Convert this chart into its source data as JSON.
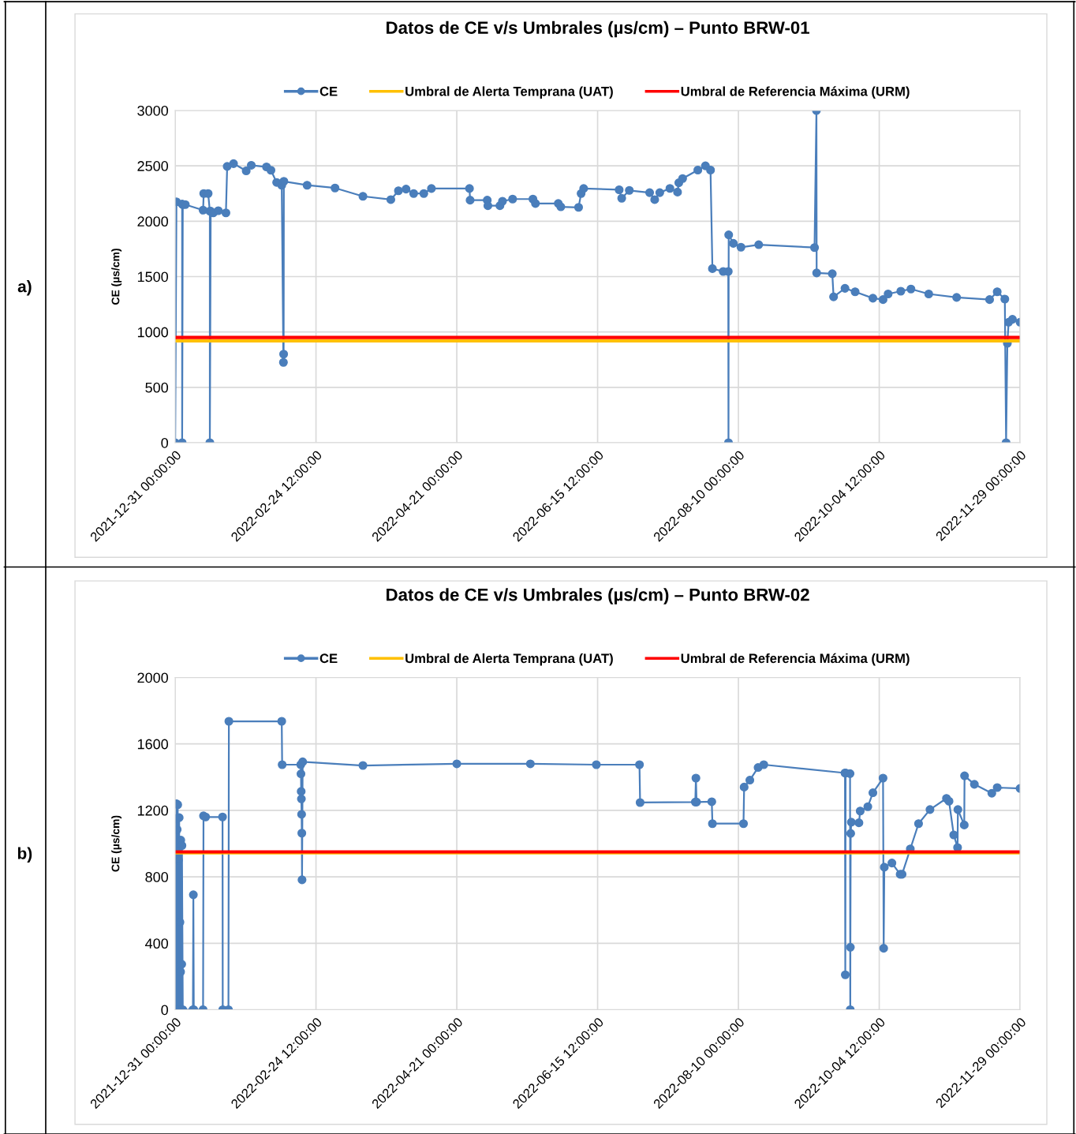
{
  "chart_data": [
    {
      "type": "line",
      "title": "Datos de CE v/s Umbrales (µs/cm) – Punto BRW-01",
      "ylabel": "CE (µs/cm)",
      "annotations": [
        "a)"
      ],
      "grid": true,
      "legend": "top",
      "xlim": [
        "2021-12-31T00:00",
        "2022-11-29T00:00"
      ],
      "xticks": [
        {
          "value": "2021-12-31T00:00",
          "label": "2021-12-31 00:00:00"
        },
        {
          "value": "2022-02-24T12:00",
          "label": "2022-02-24 12:00:00"
        },
        {
          "value": "2022-04-21T00:00",
          "label": "2022-04-21 00:00:00"
        },
        {
          "value": "2022-06-15T12:00",
          "label": "2022-06-15 12:00:00"
        },
        {
          "value": "2022-08-10T00:00",
          "label": "2022-08-10 00:00:00"
        },
        {
          "value": "2022-10-04T12:00",
          "label": "2022-10-04 12:00:00"
        },
        {
          "value": "2022-11-29T00:00",
          "label": "2022-11-29 00:00:00"
        }
      ],
      "ylim": [
        0,
        3000
      ],
      "yticks": [
        0,
        500,
        1000,
        1500,
        2000,
        2500,
        3000
      ],
      "series": [
        {
          "name": "CE",
          "color": "#4a7ebb",
          "marker": "circle",
          "x": [
            "2021-12-31T00:00",
            "2021-12-31T12:00",
            "2022-01-02T18:00",
            "2022-01-02T18:00",
            "2022-01-03T00:00",
            "2022-01-04",
            "2022-01-11",
            "2022-01-11T06:00",
            "2022-01-13",
            "2022-01-13T16:00",
            "2022-01-13T16:00",
            "2022-01-14",
            "2022-01-15",
            "2022-01-17",
            "2022-01-20",
            "2022-01-20T12:00",
            "2022-01-23",
            "2022-01-28",
            "2022-01-30",
            "2022-02-05",
            "2022-02-06T18:00",
            "2022-02-09",
            "2022-02-11",
            "2022-02-11T16:00",
            "2022-02-11T18:00",
            "2022-02-11T20:00",
            "2022-02-21",
            "2022-03-04",
            "2022-03-15",
            "2022-03-26",
            "2022-03-29",
            "2022-04-01",
            "2022-04-04",
            "2022-04-08",
            "2022-04-11",
            "2022-04-26",
            "2022-04-26T06:00",
            "2022-05-03",
            "2022-05-03T06:00",
            "2022-05-08",
            "2022-05-09",
            "2022-05-13",
            "2022-05-21",
            "2022-05-22",
            "2022-05-31",
            "2022-06-01",
            "2022-06-08",
            "2022-06-09",
            "2022-06-10",
            "2022-06-24",
            "2022-06-25",
            "2022-06-28",
            "2022-07-06",
            "2022-07-08",
            "2022-07-10",
            "2022-07-14",
            "2022-07-17",
            "2022-07-17T12:00",
            "2022-07-19",
            "2022-07-25",
            "2022-07-28",
            "2022-07-30",
            "2022-07-30T18:00",
            "2022-08-04",
            "2022-08-06",
            "2022-08-06T02:00",
            "2022-08-06T04:00",
            "2022-08-08",
            "2022-08-11",
            "2022-08-18",
            "2022-09-09",
            "2022-09-09T18:00",
            "2022-09-09T20:00",
            "2022-09-16",
            "2022-09-16T12:00",
            "2022-09-21",
            "2022-09-25",
            "2022-10-02",
            "2022-10-06",
            "2022-10-08",
            "2022-10-13",
            "2022-10-17",
            "2022-10-24",
            "2022-11-04",
            "2022-11-17",
            "2022-11-20",
            "2022-11-23",
            "2022-11-23T12:00",
            "2022-11-24",
            "2022-11-24T12:00",
            "2022-11-26",
            "2022-11-29"
          ],
          "values": [
            0,
            2175,
            2155,
            0,
            2150,
            2150,
            2100,
            2250,
            2250,
            2090,
            0,
            2090,
            2075,
            2095,
            2075,
            2495,
            2520,
            2455,
            2505,
            2490,
            2460,
            2350,
            2325,
            725,
            800,
            2360,
            2325,
            2300,
            2225,
            2195,
            2275,
            2290,
            2250,
            2250,
            2295,
            2295,
            2190,
            2190,
            2140,
            2140,
            2180,
            2200,
            2200,
            2160,
            2160,
            2130,
            2125,
            2250,
            2295,
            2284,
            2207,
            2278,
            2258,
            2195,
            2258,
            2296,
            2263,
            2347,
            2385,
            2462,
            2500,
            2462,
            1572,
            1546,
            1546,
            0,
            1877,
            1800,
            1765,
            1788,
            1762,
            3000,
            1533,
            1526,
            1317,
            1394,
            1363,
            1305,
            1292,
            1343,
            1368,
            1388,
            1343,
            1312,
            1292,
            1363,
            1297,
            0,
            898,
            1088,
            1114,
            1088
          ]
        },
        {
          "name": "Umbral de Alerta Temprana (UAT)",
          "color": "#ffc000",
          "marker": "none",
          "x": [
            "2021-12-31T00:00",
            "2022-11-29T00:00"
          ],
          "values": [
            920,
            920
          ]
        },
        {
          "name": "Umbral de Referencia Máxima (URM)",
          "color": "#ff0000",
          "marker": "none",
          "x": [
            "2021-12-31T00:00",
            "2022-11-29T00:00"
          ],
          "values": [
            950,
            950
          ]
        }
      ]
    },
    {
      "type": "line",
      "title": "Datos de CE v/s Umbrales (µs/cm) – Punto BRW-02",
      "ylabel": "CE (µs/cm)",
      "annotations": [
        "b)"
      ],
      "grid": true,
      "legend": "top",
      "xlim": [
        "2021-12-31T00:00",
        "2022-11-29T00:00"
      ],
      "xticks": [
        {
          "value": "2021-12-31T00:00",
          "label": "2021-12-31 00:00:00"
        },
        {
          "value": "2022-02-24T12:00",
          "label": "2022-02-24 12:00:00"
        },
        {
          "value": "2022-04-21T00:00",
          "label": "2022-04-21 00:00:00"
        },
        {
          "value": "2022-06-15T12:00",
          "label": "2022-06-15 12:00:00"
        },
        {
          "value": "2022-08-10T00:00",
          "label": "2022-08-10 00:00:00"
        },
        {
          "value": "2022-10-04T12:00",
          "label": "2022-10-04 12:00:00"
        },
        {
          "value": "2022-11-29T00:00",
          "label": "2022-11-29 00:00:00"
        }
      ],
      "ylim": [
        0,
        2000
      ],
      "yticks": [
        0,
        400,
        800,
        1200,
        1600,
        2000
      ],
      "series": [
        {
          "name": "CE",
          "color": "#4a7ebb",
          "marker": "circle",
          "x": [
            "2021-12-31T00:00",
            "2021-12-31T05:00",
            "2021-12-31T07:00",
            "2021-12-31T12:00",
            "2021-12-31T14:00",
            "2021-12-31T19:00",
            "2021-12-31T21:00",
            "2022-01-01T00:00",
            "2022-01-01T02:00",
            "2022-01-01T07:00",
            "2022-01-01T09:00",
            "2022-01-01T14:00",
            "2022-01-01T16:00",
            "2022-01-01T21:00",
            "2022-01-02T00:00",
            "2022-01-02T03:00",
            "2022-01-02T05:00",
            "2022-01-02T12:00",
            "2022-01-02T14:00",
            "2022-01-02T16:00",
            "2022-01-03T00:00",
            "2022-01-07",
            "2022-01-07T04:00",
            "2022-01-07T08:00",
            "2022-01-11",
            "2022-01-11T04:00",
            "2022-01-12",
            "2022-01-18T16:00",
            "2022-01-18T18:00",
            "2022-01-21",
            "2022-01-21T04:00",
            "2022-02-11",
            "2022-02-11T04:00",
            "2022-02-18T12:00",
            "2022-02-18T14:00",
            "2022-02-18T16:00",
            "2022-02-18T18:00",
            "2022-02-18T20:00",
            "2022-02-18T22:00",
            "2022-02-19T00:00",
            "2022-02-19T06:00",
            "2022-03-15",
            "2022-04-21",
            "2022-05-20",
            "2022-06-15",
            "2022-07-02",
            "2022-07-02T06:00",
            "2022-07-24",
            "2022-07-24T06:00",
            "2022-07-24T12:00",
            "2022-07-30T12:00",
            "2022-07-30T18:00",
            "2022-08-12",
            "2022-08-12T06:00",
            "2022-08-14T12:00",
            "2022-08-17T18:00",
            "2022-08-20",
            "2022-09-21",
            "2022-09-21T03:00",
            "2022-09-21T06:00",
            "2022-09-23",
            "2022-09-23T02:00",
            "2022-09-23T03:00",
            "2022-09-23T06:00",
            "2022-09-23T12:00",
            "2022-09-26T12:00",
            "2022-09-27",
            "2022-09-30",
            "2022-10-02",
            "2022-10-06",
            "2022-10-06T06:00",
            "2022-10-06T12:00",
            "2022-10-09T12:00",
            "2022-10-12T18:00",
            "2022-10-13T12:00",
            "2022-10-16T18:00",
            "2022-10-20",
            "2022-10-24T12:00",
            "2022-10-31",
            "2022-11-01",
            "2022-11-02T21:00",
            "2022-11-04T09:00",
            "2022-11-04T12:00",
            "2022-11-07",
            "2022-11-07T03:00",
            "2022-11-11",
            "2022-11-17T21:00",
            "2022-11-20",
            "2022-11-29"
          ],
          "values": [
            0,
            1150,
            0,
            1240,
            0,
            1084,
            0,
            1234,
            0,
            901,
            0,
            1156,
            0,
            527,
            0,
            228,
            1021,
            0,
            274,
            988,
            0,
            0,
            692,
            0,
            0,
            1167,
            1160,
            1160,
            0,
            0,
            1736,
            1736,
            1475,
            1475,
            1420,
            1314,
            1269,
            1176,
            1063,
            782,
            1492,
            1470,
            1480,
            1480,
            1475,
            1475,
            1247,
            1250,
            1394,
            1250,
            1252,
            1120,
            1120,
            1340,
            1382,
            1458,
            1475,
            1425,
            210,
            1425,
            1421,
            0,
            376,
            1061,
            1129,
            1125,
            1196,
            1222,
            1306,
            1394,
            370,
            858,
            883,
            815,
            815,
            968,
            1120,
            1205,
            1272,
            1255,
            1052,
            976,
            1205,
            1112,
            1408,
            1357,
            1303,
            1337,
            1332
          ]
        },
        {
          "name": "Umbral de Alerta Temprana (UAT)",
          "color": "#ffc000",
          "marker": "none",
          "x": [
            "2021-12-31T00:00",
            "2022-11-29T00:00"
          ],
          "values": [
            945,
            945
          ]
        },
        {
          "name": "Umbral de Referencia Máxima (URM)",
          "color": "#ff0000",
          "marker": "none",
          "x": [
            "2021-12-31T00:00",
            "2022-11-29T00:00"
          ],
          "values": [
            950,
            950
          ]
        }
      ]
    }
  ]
}
